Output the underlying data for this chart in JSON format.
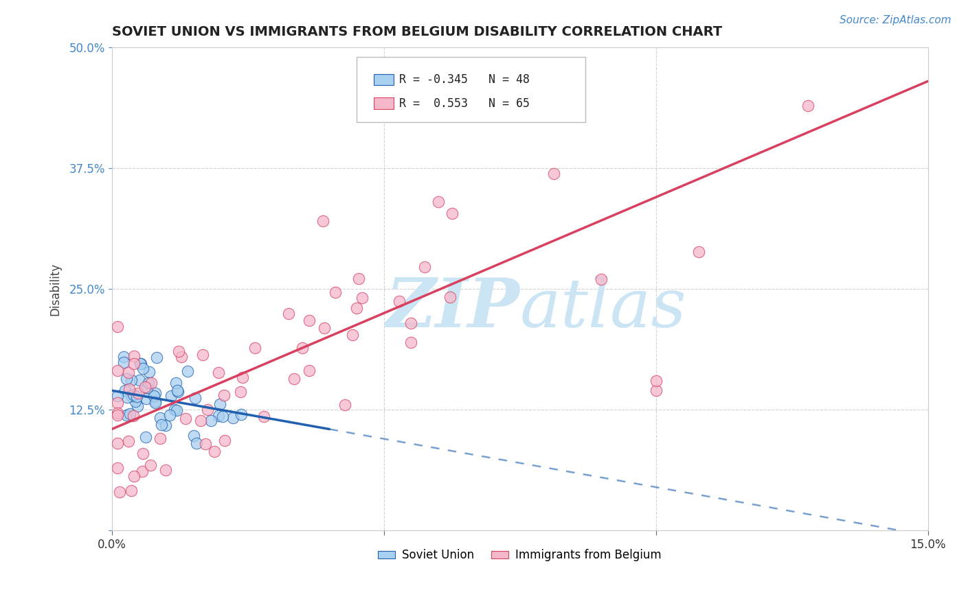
{
  "title": "SOVIET UNION VS IMMIGRANTS FROM BELGIUM DISABILITY CORRELATION CHART",
  "source": "Source: ZipAtlas.com",
  "ylabel": "Disability",
  "xlim": [
    0.0,
    0.15
  ],
  "ylim": [
    0.0,
    0.5
  ],
  "xticks": [
    0.0,
    0.05,
    0.1,
    0.15
  ],
  "xticklabels": [
    "0.0%",
    "",
    "",
    "15.0%"
  ],
  "yticks": [
    0.0,
    0.125,
    0.25,
    0.375,
    0.5
  ],
  "yticklabels": [
    "",
    "12.5%",
    "25.0%",
    "37.5%",
    "50.0%"
  ],
  "legend_r1": "R = -0.345",
  "legend_n1": "N = 48",
  "legend_r2": "R =  0.553",
  "legend_n2": "N = 65",
  "series1_label": "Soviet Union",
  "series2_label": "Immigrants from Belgium",
  "series1_color": "#a8d0f0",
  "series2_color": "#f5b8cb",
  "trend1_color": "#2060b0",
  "trend2_color": "#d94060",
  "watermark_color": "#cce5f5",
  "background_color": "#ffffff",
  "grid_color": "#cccccc",
  "title_color": "#222222",
  "ytick_color": "#4488cc",
  "source_color": "#4488cc",
  "trend1_slope": -1.0,
  "trend1_intercept": 0.145,
  "trend1_solid_end": 0.04,
  "trend2_slope": 2.4,
  "trend2_intercept": 0.105
}
